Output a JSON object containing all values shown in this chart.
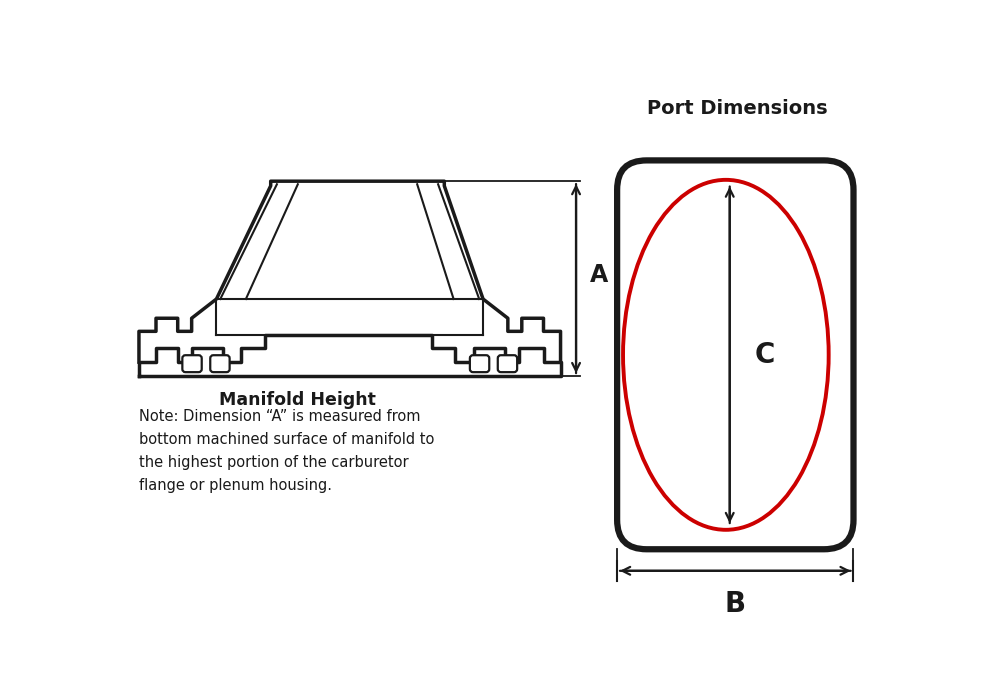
{
  "title_port": "Port Dimensions",
  "label_A": "A",
  "label_B": "B",
  "label_C": "C",
  "manifold_height_title": "Manifold Height",
  "note_text": "Note: Dimension “A” is measured from\nbottom machined surface of manifold to\nthe highest portion of the carburetor\nflange or plenum housing.",
  "rect_color": "#1a1a1a",
  "ellipse_color": "#cc0000",
  "arrow_color": "#1a1a1a",
  "text_color": "#1a1a1a",
  "manifold_outline_color": "#1a1a1a",
  "fig_w": 10.0,
  "fig_h": 6.95,
  "dpi": 100
}
